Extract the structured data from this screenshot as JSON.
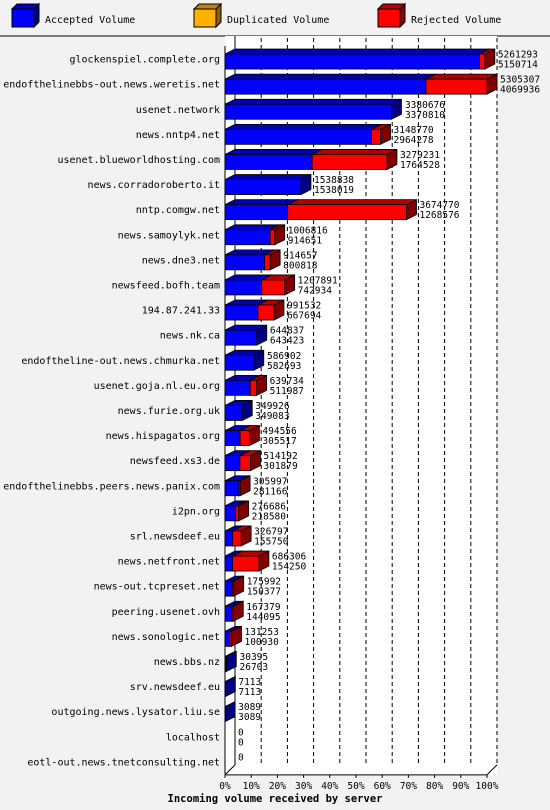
{
  "legend": [
    {
      "label": "Accepted Volume",
      "color": "#0000ff"
    },
    {
      "label": "Duplicated Volume",
      "color": "#ffb000"
    },
    {
      "label": "Rejected Volume",
      "color": "#ff0000"
    }
  ],
  "chart_data": {
    "type": "bar",
    "orientation": "horizontal",
    "stacked": true,
    "xlabel": "Incoming volume received by server",
    "x_ticks": [
      "0%",
      "10%",
      "20%",
      "30%",
      "40%",
      "50%",
      "60%",
      "70%",
      "80%",
      "90%",
      "100%"
    ],
    "xlim": [
      0,
      100
    ],
    "grid": true,
    "legend_position": "top",
    "categories": [
      "glockenspiel.complete.org",
      "endofthelinebbs-out.news.weretis.net",
      "usenet.network",
      "news.nntp4.net",
      "usenet.blueworldhosting.com",
      "news.corradoroberto.it",
      "nntp.comgw.net",
      "news.samoylyk.net",
      "news.dne3.net",
      "newsfeed.bofh.team",
      "194.87.241.33",
      "news.nk.ca",
      "endoftheline-out.news.chmurka.net",
      "usenet.goja.nl.eu.org",
      "news.furie.org.uk",
      "news.hispagatos.org",
      "newsfeed.xs3.de",
      "endofthelinebbs.peers.news.panix.com",
      "i2pn.org",
      "srl.newsdeef.eu",
      "news.netfront.net",
      "news-out.tcpreset.net",
      "peering.usenet.ovh",
      "news.sonologic.net",
      "news.bbs.nz",
      "srv.newsdeef.eu",
      "outgoing.news.lysator.liu.se",
      "localhost",
      "eotl-out.news.tnetconsulting.net"
    ],
    "totals": [
      "5261293",
      "5305307",
      "3380676",
      "3148770",
      "3279231",
      "1538838",
      "3674770",
      "1006816",
      "914657",
      "1207891",
      "991532",
      "644837",
      "586902",
      "639734",
      "349926",
      "494556",
      "514192",
      "305997",
      "276686",
      "326797",
      "686306",
      "175992",
      "167379",
      "131253",
      "30395",
      "7113",
      "3089",
      "0",
      "0"
    ],
    "accepted": [
      "5150714",
      "4069936",
      "3370810",
      "2964278",
      "1764528",
      "1538019",
      "1268576",
      "914651",
      "800818",
      "742934",
      "667694",
      "643423",
      "582693",
      "511987",
      "349083",
      "305517",
      "301879",
      "281166",
      "218580",
      "155750",
      "154250",
      "150377",
      "144095",
      "100930",
      "26703",
      "7113",
      "3089",
      "0",
      ""
    ],
    "max_total": 5305307
  },
  "caption": "Incoming volume received by server"
}
